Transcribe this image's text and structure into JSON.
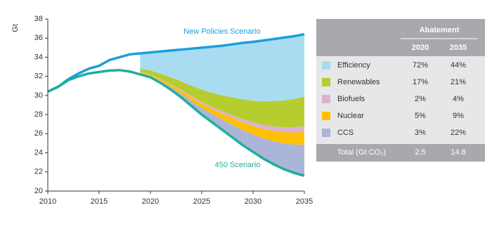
{
  "chart_data": {
    "type": "area",
    "y_label": "Gt",
    "x": [
      2010,
      2011,
      2012,
      2013,
      2014,
      2015,
      2016,
      2017,
      2018,
      2019,
      2020,
      2021,
      2022,
      2023,
      2024,
      2025,
      2026,
      2027,
      2028,
      2029,
      2030,
      2031,
      2032,
      2033,
      2034,
      2035
    ],
    "xlim": [
      2010,
      2035
    ],
    "xticks": [
      2010,
      2015,
      2020,
      2025,
      2030,
      2035
    ],
    "ylim": [
      20,
      38
    ],
    "yticks": [
      20,
      22,
      24,
      26,
      28,
      30,
      32,
      34,
      36,
      38
    ],
    "grid": false,
    "lines": [
      {
        "name": "New Policies Scenario",
        "color": "#1a9fdc",
        "values": [
          30.4,
          30.9,
          31.7,
          32.3,
          32.8,
          33.1,
          33.7,
          34.0,
          34.3,
          34.4,
          34.5,
          34.6,
          34.7,
          34.8,
          34.9,
          35.0,
          35.1,
          35.2,
          35.35,
          35.5,
          35.6,
          35.75,
          35.9,
          36.05,
          36.2,
          36.4
        ]
      },
      {
        "name": "450 Scenario",
        "color": "#1fae9c",
        "values": [
          30.4,
          30.9,
          31.6,
          32.0,
          32.3,
          32.45,
          32.6,
          32.65,
          32.5,
          32.2,
          31.9,
          31.3,
          30.6,
          29.8,
          28.9,
          28.0,
          27.2,
          26.4,
          25.6,
          24.8,
          24.1,
          23.4,
          22.8,
          22.3,
          21.9,
          21.6
        ]
      }
    ],
    "series": [
      {
        "name": "Efficiency",
        "color": "#a9dcf1",
        "values": [
          null,
          null,
          null,
          null,
          null,
          null,
          null,
          null,
          null,
          1.58,
          1.87,
          2.31,
          2.8,
          3.32,
          3.87,
          4.39,
          4.8,
          5.19,
          5.56,
          5.91,
          6.13,
          6.36,
          6.5,
          6.56,
          6.56,
          6.51
        ]
      },
      {
        "name": "Renewables",
        "color": "#b6cd2f",
        "values": [
          null,
          null,
          null,
          null,
          null,
          null,
          null,
          null,
          null,
          0.37,
          0.44,
          0.57,
          0.72,
          0.89,
          1.08,
          1.28,
          1.47,
          1.66,
          1.87,
          2.08,
          2.26,
          2.46,
          2.65,
          2.81,
          2.96,
          3.11
        ]
      },
      {
        "name": "Biofuels",
        "color": "#dbb2d2",
        "values": [
          null,
          null,
          null,
          null,
          null,
          null,
          null,
          null,
          null,
          0.04,
          0.05,
          0.07,
          0.09,
          0.12,
          0.15,
          0.19,
          0.22,
          0.26,
          0.3,
          0.34,
          0.38,
          0.43,
          0.47,
          0.51,
          0.55,
          0.59
        ]
      },
      {
        "name": "Nuclear",
        "color": "#ffc000",
        "values": [
          null,
          null,
          null,
          null,
          null,
          null,
          null,
          null,
          null,
          0.11,
          0.13,
          0.17,
          0.23,
          0.29,
          0.36,
          0.44,
          0.52,
          0.6,
          0.7,
          0.79,
          0.88,
          0.98,
          1.07,
          1.16,
          1.25,
          1.33
        ]
      },
      {
        "name": "CCS",
        "color": "#abb5d8",
        "values": [
          null,
          null,
          null,
          null,
          null,
          null,
          null,
          null,
          null,
          0.09,
          0.1,
          0.17,
          0.26,
          0.38,
          0.53,
          0.7,
          0.88,
          1.09,
          1.33,
          1.58,
          1.84,
          2.12,
          2.41,
          2.7,
          2.97,
          3.26
        ]
      }
    ],
    "abatement": {
      "title": "Abatement",
      "columns": [
        "2020",
        "2035"
      ],
      "rows": [
        [
          "72%",
          "44%"
        ],
        [
          "17%",
          "21%"
        ],
        [
          "2%",
          "4%"
        ],
        [
          "5%",
          "9%"
        ],
        [
          "3%",
          "22%"
        ]
      ],
      "total": {
        "label": "Total (Gt CO₂)",
        "values": [
          2.5,
          14.8
        ]
      }
    }
  }
}
